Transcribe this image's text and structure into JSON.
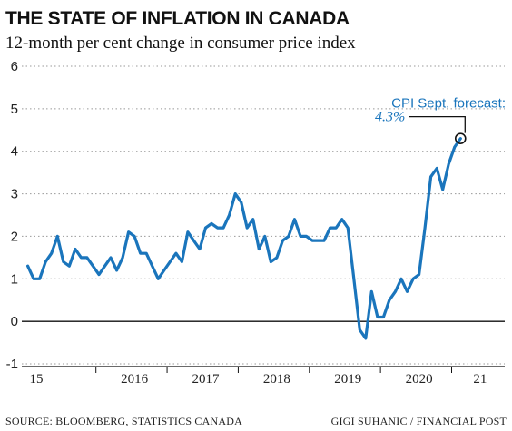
{
  "chart_data": {
    "type": "line",
    "title": "THE STATE OF INFLATION IN CANADA",
    "subtitle": "12-month per cent change in consumer price index",
    "ylim": [
      -1,
      6
    ],
    "yticks": [
      -1,
      0,
      1,
      2,
      3,
      4,
      5,
      6
    ],
    "grid": "horizontal dotted",
    "x_tick_labels": [
      {
        "label": "15",
        "x": "2015-01"
      },
      {
        "label": "2016",
        "x": "2016-01"
      },
      {
        "label": "2017",
        "x": "2017-01"
      },
      {
        "label": "2018",
        "x": "2018-01"
      },
      {
        "label": "2019",
        "x": "2019-01"
      },
      {
        "label": "2020",
        "x": "2020-01"
      },
      {
        "label": "21",
        "x": "2021-01"
      }
    ],
    "xlim": [
      "2015-01",
      "2021-09"
    ],
    "series": [
      {
        "color": "#1a75bc",
        "points": [
          [
            "2015-01",
            1.3
          ],
          [
            "2015-02",
            1.0
          ],
          [
            "2015-03",
            1.0
          ],
          [
            "2015-04",
            1.4
          ],
          [
            "2015-05",
            1.6
          ],
          [
            "2015-06",
            2.0
          ],
          [
            "2015-07",
            1.4
          ],
          [
            "2015-08",
            1.3
          ],
          [
            "2015-09",
            1.7
          ],
          [
            "2015-10",
            1.5
          ],
          [
            "2015-11",
            1.5
          ],
          [
            "2015-12",
            1.3
          ],
          [
            "2016-01",
            1.1
          ],
          [
            "2016-02",
            1.3
          ],
          [
            "2016-03",
            1.5
          ],
          [
            "2016-04",
            1.2
          ],
          [
            "2016-05",
            1.5
          ],
          [
            "2016-06",
            2.1
          ],
          [
            "2016-07",
            2.0
          ],
          [
            "2016-08",
            1.6
          ],
          [
            "2016-09",
            1.6
          ],
          [
            "2016-10",
            1.3
          ],
          [
            "2016-11",
            1.0
          ],
          [
            "2016-12",
            1.2
          ],
          [
            "2017-01",
            1.4
          ],
          [
            "2017-02",
            1.6
          ],
          [
            "2017-03",
            1.4
          ],
          [
            "2017-04",
            2.1
          ],
          [
            "2017-05",
            1.9
          ],
          [
            "2017-06",
            1.7
          ],
          [
            "2017-07",
            2.2
          ],
          [
            "2017-08",
            2.3
          ],
          [
            "2017-09",
            2.2
          ],
          [
            "2017-10",
            2.2
          ],
          [
            "2017-11",
            2.5
          ],
          [
            "2017-12",
            3.0
          ],
          [
            "2018-01",
            2.8
          ],
          [
            "2018-02",
            2.2
          ],
          [
            "2018-03",
            2.4
          ],
          [
            "2018-04",
            1.7
          ],
          [
            "2018-05",
            2.0
          ],
          [
            "2018-06",
            1.4
          ],
          [
            "2018-07",
            1.5
          ],
          [
            "2018-08",
            1.9
          ],
          [
            "2018-09",
            2.0
          ],
          [
            "2018-10",
            2.4
          ],
          [
            "2018-11",
            2.0
          ],
          [
            "2018-12",
            2.0
          ],
          [
            "2019-01",
            1.9
          ],
          [
            "2019-02",
            1.9
          ],
          [
            "2019-03",
            1.9
          ],
          [
            "2019-04",
            2.2
          ],
          [
            "2019-05",
            2.2
          ],
          [
            "2019-06",
            2.4
          ],
          [
            "2019-07",
            2.2
          ],
          [
            "2019-08",
            1.0
          ],
          [
            "2019-09",
            -0.2
          ],
          [
            "2019-10",
            -0.4
          ],
          [
            "2019-11",
            0.7
          ],
          [
            "2019-12",
            0.1
          ],
          [
            "2020-01",
            0.1
          ],
          [
            "2020-02",
            0.5
          ],
          [
            "2020-03",
            0.7
          ],
          [
            "2020-04",
            1.0
          ],
          [
            "2020-05",
            0.7
          ],
          [
            "2020-06",
            1.0
          ],
          [
            "2020-07",
            1.1
          ],
          [
            "2020-08",
            2.2
          ],
          [
            "2020-09",
            3.4
          ],
          [
            "2020-10",
            3.6
          ],
          [
            "2020-11",
            3.1
          ],
          [
            "2020-12",
            3.7
          ],
          [
            "2021-01",
            4.1
          ],
          [
            "2021-02",
            4.3
          ]
        ]
      }
    ],
    "annotation": {
      "label": "CPI Sept. forecast:",
      "value_label": "4.3%",
      "x": "2021-02",
      "y": 4.3,
      "color": "#1a75bc"
    },
    "source": "SOURCE: BLOOMBERG, STATISTICS CANADA",
    "credit": "GIGI SUHANIC / FINANCIAL POST"
  }
}
